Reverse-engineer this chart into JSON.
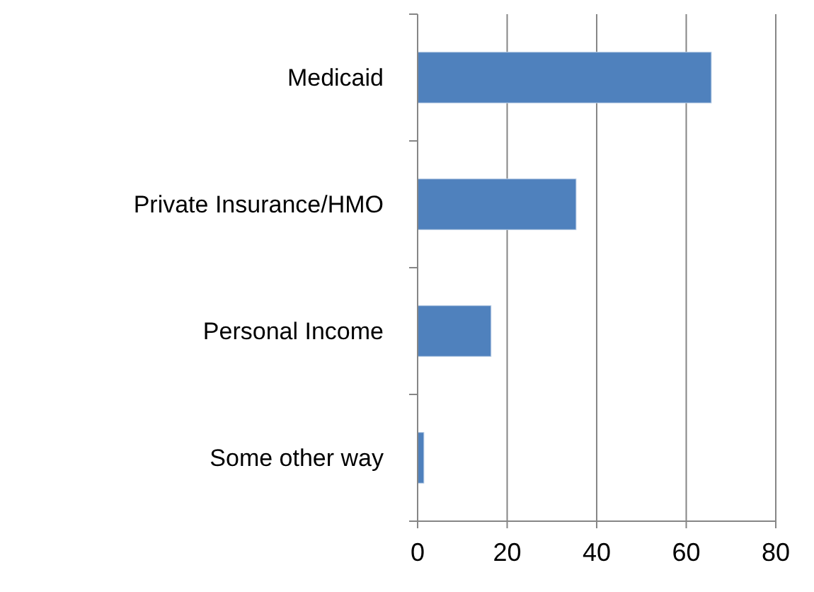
{
  "chart_data": {
    "type": "bar",
    "orientation": "horizontal",
    "categories": [
      "Medicaid",
      "Private Insurance/HMO",
      "Personal Income",
      "Some other way"
    ],
    "values": [
      65.6,
      35.4,
      16.4,
      1.4
    ],
    "color": "#4f81bd",
    "xlim": [
      0,
      80
    ],
    "xticks": [
      0,
      20,
      40,
      60,
      80
    ],
    "grid": "x"
  }
}
